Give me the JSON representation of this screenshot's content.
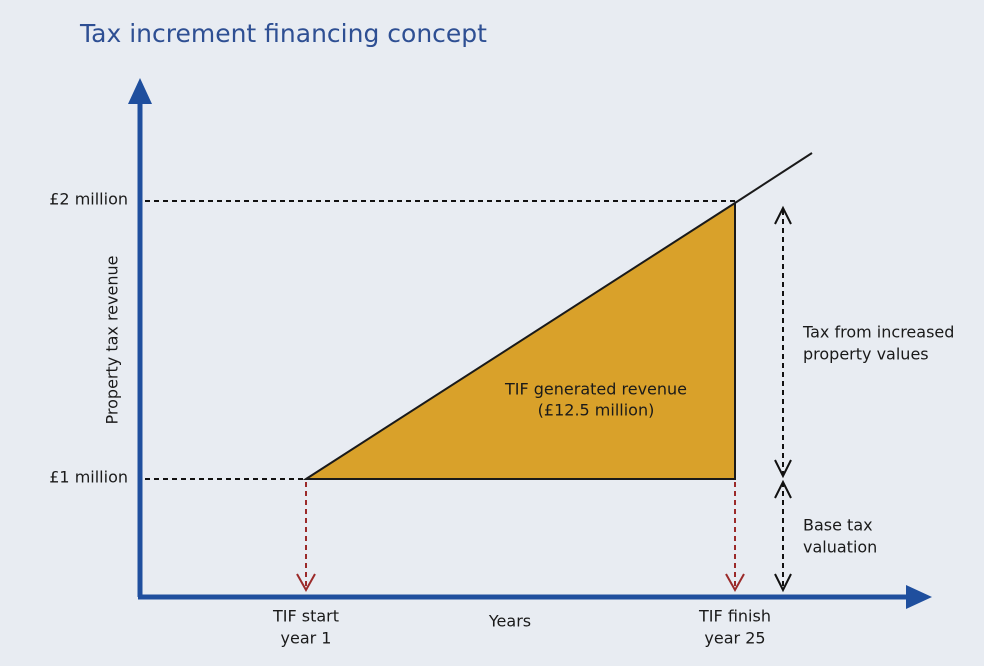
{
  "header": {
    "title": "Tax increment financing concept"
  },
  "axes": {
    "y_label": "Property tax revenue",
    "x_label": "Years",
    "y_levels": [
      "£2 million",
      "£1 million"
    ],
    "x_marks": [
      {
        "lines": [
          "TIF start",
          "year 1"
        ]
      },
      {
        "lines": [
          "TIF finish",
          "year 25"
        ]
      }
    ]
  },
  "regions": {
    "generated": {
      "lines": [
        "TIF generated revenue",
        "(£12.5 million)"
      ]
    },
    "increase": {
      "lines": [
        "Tax from increased",
        "property values"
      ]
    },
    "base": {
      "lines": [
        "Base tax",
        "valuation"
      ]
    }
  }
}
